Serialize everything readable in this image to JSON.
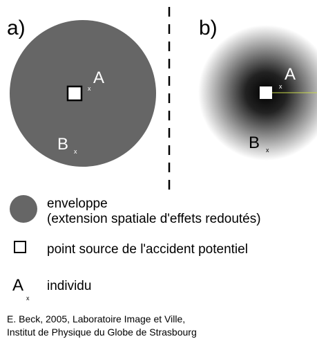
{
  "panels": [
    {
      "label": "a)",
      "points": {
        "A": "A",
        "B": "B",
        "marker": "x"
      }
    },
    {
      "label": "b)",
      "points": {
        "A": "A",
        "B": "B",
        "marker": "x"
      }
    }
  ],
  "legend": [
    {
      "lines": [
        "enveloppe",
        "(extension spatiale d'effets redoutés)"
      ]
    },
    {
      "lines": [
        "point source de l'accident potentiel"
      ]
    },
    {
      "symbol": "A",
      "marker": "x",
      "lines": [
        "individu"
      ]
    }
  ],
  "credit": [
    "E. Beck, 2005, Laboratoire Image et Ville,",
    "Institut de Physique du Globe de Strasbourg"
  ]
}
